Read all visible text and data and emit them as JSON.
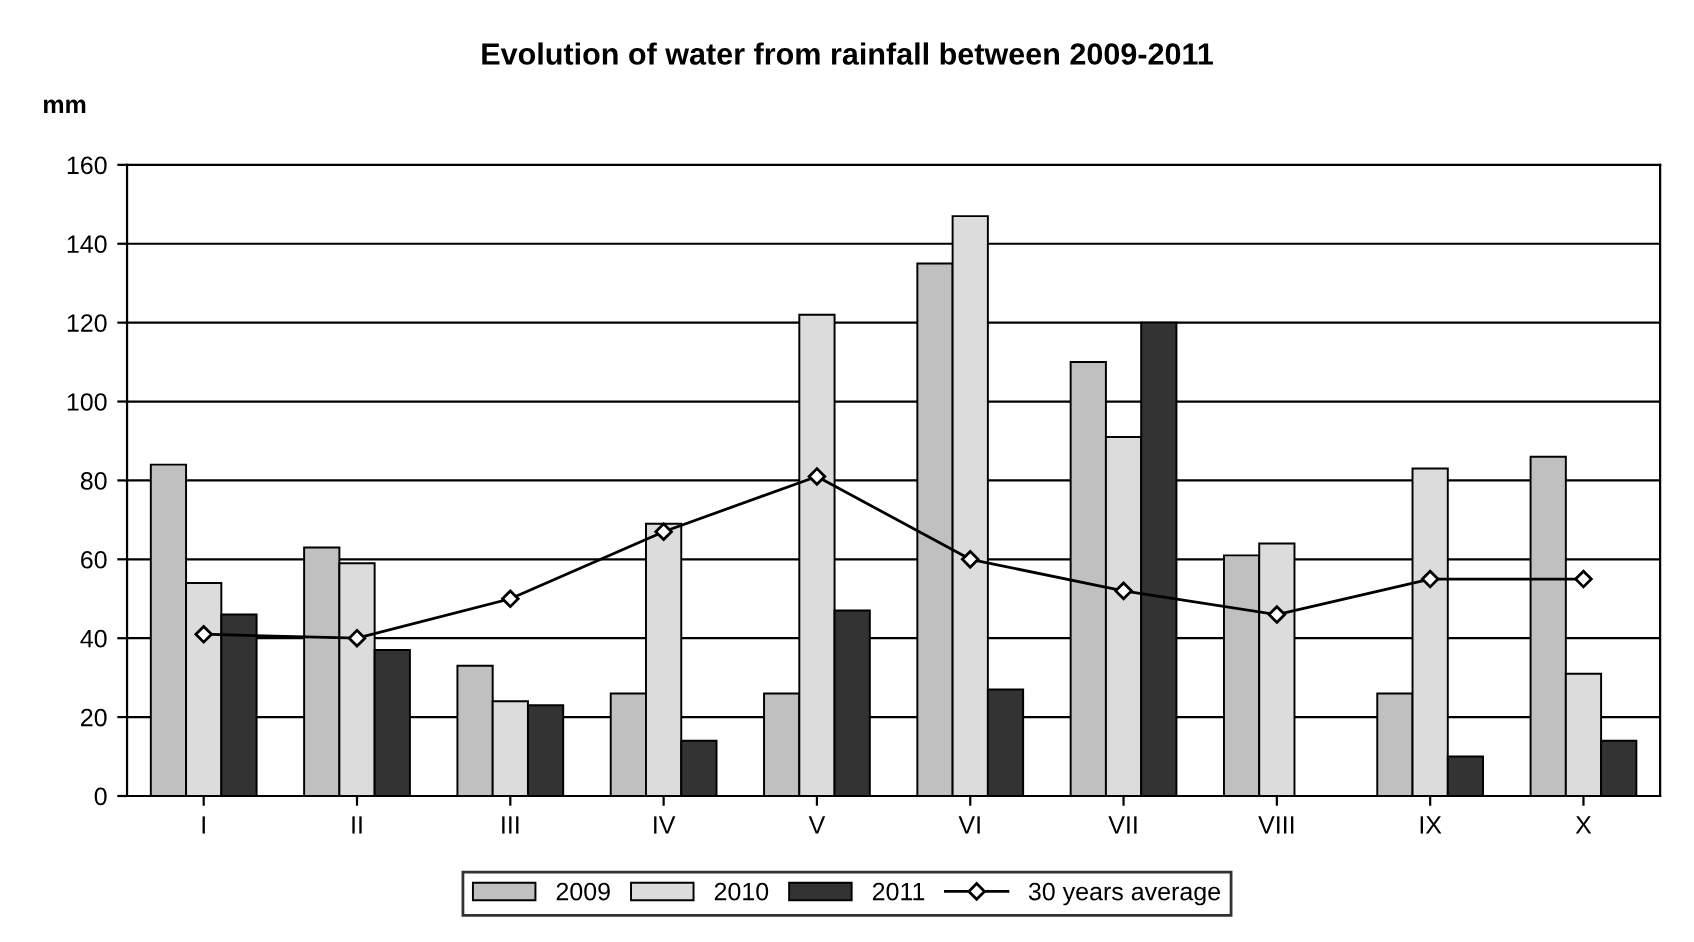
{
  "chart_data": {
    "type": "bar",
    "title": "Evolution of water from rainfall between 2009-2011",
    "ylabel": "mm",
    "categories": [
      "I",
      "II",
      "III",
      "IV",
      "V",
      "VI",
      "VII",
      "VIII",
      "IX",
      "X"
    ],
    "series": [
      {
        "name": "2009",
        "color": "#c0c0c0",
        "values": [
          84,
          63,
          33,
          26,
          26,
          135,
          110,
          61,
          26,
          86
        ]
      },
      {
        "name": "2010",
        "color": "#dcdcdc",
        "values": [
          54,
          59,
          24,
          69,
          122,
          147,
          91,
          64,
          83,
          31
        ]
      },
      {
        "name": "2011",
        "color": "#333333",
        "values": [
          46,
          37,
          23,
          14,
          47,
          27,
          120,
          null,
          10,
          14
        ]
      },
      {
        "name": "30 years average",
        "type": "line",
        "color": "#000000",
        "marker": "diamond",
        "values": [
          41,
          40,
          50,
          67,
          81,
          60,
          52,
          46,
          55,
          55
        ]
      }
    ],
    "ylim": [
      0,
      160
    ],
    "yticks": [
      0,
      20,
      40,
      60,
      80,
      100,
      120,
      140,
      160
    ],
    "grid": "y",
    "legend": "bottom"
  }
}
